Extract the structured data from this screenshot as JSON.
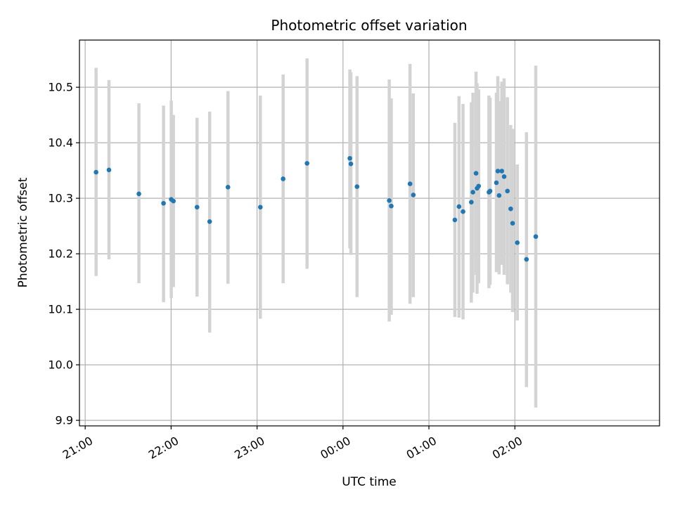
{
  "chart_data": {
    "type": "scatter",
    "title": "Photometric offset variation",
    "xlabel": "UTC time",
    "ylabel": "Photometric offset",
    "xlim_minutes": [
      1256,
      1661
    ],
    "ylim": [
      9.89,
      10.585
    ],
    "grid": true,
    "x_ticks": [
      {
        "label": "21:00",
        "t": 1260
      },
      {
        "label": "22:00",
        "t": 1320
      },
      {
        "label": "23:00",
        "t": 1380
      },
      {
        "label": "00:00",
        "t": 1440
      },
      {
        "label": "01:00",
        "t": 1500
      },
      {
        "label": "02:00",
        "t": 1560
      }
    ],
    "y_ticks": [
      9.9,
      10.0,
      10.1,
      10.2,
      10.3,
      10.4,
      10.5
    ],
    "colors": {
      "point": "#1f77b4",
      "errorbar": "#d3d3d3",
      "grid": "#b0b0b0"
    },
    "points": [
      {
        "t": 1267.6,
        "y": 10.347,
        "lo": 10.16,
        "hi": 10.535
      },
      {
        "t": 1276.6,
        "y": 10.351,
        "lo": 10.19,
        "hi": 10.513
      },
      {
        "t": 1297.5,
        "y": 10.308,
        "lo": 10.147,
        "hi": 10.471
      },
      {
        "t": 1314.7,
        "y": 10.291,
        "lo": 10.113,
        "hi": 10.467
      },
      {
        "t": 1320.1,
        "y": 10.298,
        "lo": 10.12,
        "hi": 10.476
      },
      {
        "t": 1321.6,
        "y": 10.295,
        "lo": 10.14,
        "hi": 10.45
      },
      {
        "t": 1338.1,
        "y": 10.284,
        "lo": 10.123,
        "hi": 10.445
      },
      {
        "t": 1346.9,
        "y": 10.258,
        "lo": 10.058,
        "hi": 10.456
      },
      {
        "t": 1359.7,
        "y": 10.32,
        "lo": 10.146,
        "hi": 10.493
      },
      {
        "t": 1382.3,
        "y": 10.284,
        "lo": 10.083,
        "hi": 10.485
      },
      {
        "t": 1398.2,
        "y": 10.335,
        "lo": 10.147,
        "hi": 10.523
      },
      {
        "t": 1414.9,
        "y": 10.363,
        "lo": 10.173,
        "hi": 10.552
      },
      {
        "t": 1444.8,
        "y": 10.372,
        "lo": 10.21,
        "hi": 10.532
      },
      {
        "t": 1445.5,
        "y": 10.362,
        "lo": 10.198,
        "hi": 10.527
      },
      {
        "t": 1449.8,
        "y": 10.321,
        "lo": 10.122,
        "hi": 10.52
      },
      {
        "t": 1472.3,
        "y": 10.296,
        "lo": 10.078,
        "hi": 10.514
      },
      {
        "t": 1473.7,
        "y": 10.286,
        "lo": 10.09,
        "hi": 10.48
      },
      {
        "t": 1486.8,
        "y": 10.326,
        "lo": 10.11,
        "hi": 10.542
      },
      {
        "t": 1489.1,
        "y": 10.306,
        "lo": 10.122,
        "hi": 10.489
      },
      {
        "t": 1518.1,
        "y": 10.261,
        "lo": 10.086,
        "hi": 10.436
      },
      {
        "t": 1521.0,
        "y": 10.285,
        "lo": 10.085,
        "hi": 10.484
      },
      {
        "t": 1523.8,
        "y": 10.276,
        "lo": 10.082,
        "hi": 10.47
      },
      {
        "t": 1529.6,
        "y": 10.293,
        "lo": 10.112,
        "hi": 10.473
      },
      {
        "t": 1530.7,
        "y": 10.311,
        "lo": 10.13,
        "hi": 10.49
      },
      {
        "t": 1532.9,
        "y": 10.345,
        "lo": 10.162,
        "hi": 10.528
      },
      {
        "t": 1533.6,
        "y": 10.318,
        "lo": 10.128,
        "hi": 10.507
      },
      {
        "t": 1534.7,
        "y": 10.322,
        "lo": 10.147,
        "hi": 10.496
      },
      {
        "t": 1541.9,
        "y": 10.311,
        "lo": 10.138,
        "hi": 10.485
      },
      {
        "t": 1542.7,
        "y": 10.313,
        "lo": 10.144,
        "hi": 10.481
      },
      {
        "t": 1547.1,
        "y": 10.328,
        "lo": 10.167,
        "hi": 10.49
      },
      {
        "t": 1548.1,
        "y": 10.349,
        "lo": 10.18,
        "hi": 10.52
      },
      {
        "t": 1549.0,
        "y": 10.305,
        "lo": 10.163,
        "hi": 10.475
      },
      {
        "t": 1550.9,
        "y": 10.349,
        "lo": 10.18,
        "hi": 10.51
      },
      {
        "t": 1552.5,
        "y": 10.339,
        "lo": 10.162,
        "hi": 10.516
      },
      {
        "t": 1554.8,
        "y": 10.313,
        "lo": 10.145,
        "hi": 10.482
      },
      {
        "t": 1557.1,
        "y": 10.281,
        "lo": 10.13,
        "hi": 10.432
      },
      {
        "t": 1558.4,
        "y": 10.255,
        "lo": 10.095,
        "hi": 10.425
      },
      {
        "t": 1561.7,
        "y": 10.22,
        "lo": 10.08,
        "hi": 10.361
      },
      {
        "t": 1568.1,
        "y": 10.19,
        "lo": 9.96,
        "hi": 10.419
      },
      {
        "t": 1574.6,
        "y": 10.231,
        "lo": 9.923,
        "hi": 10.539
      }
    ]
  }
}
